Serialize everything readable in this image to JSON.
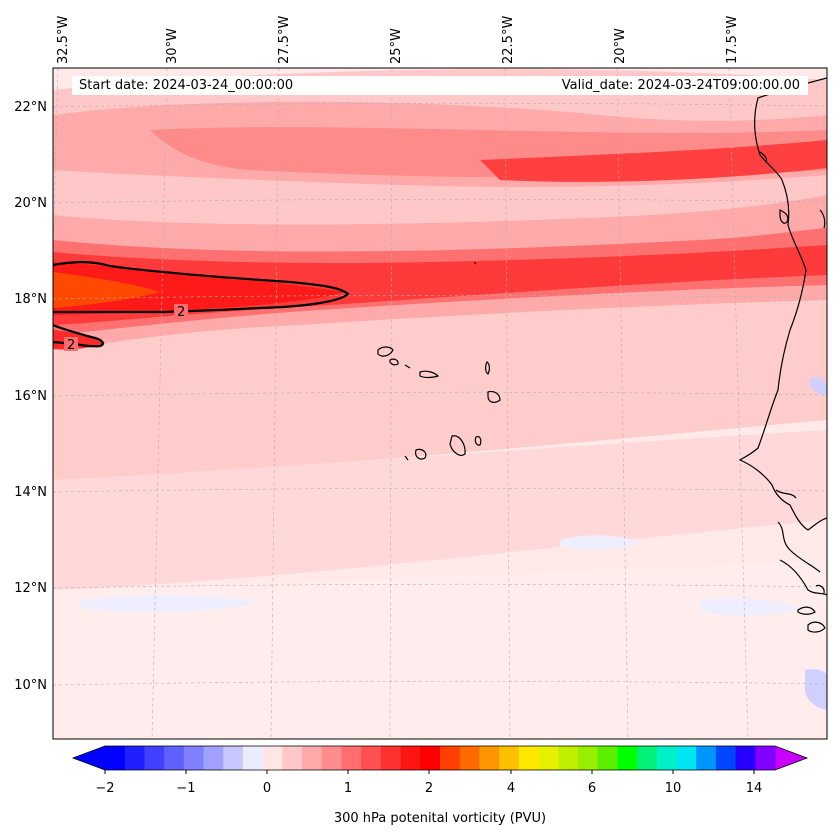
{
  "header": {
    "start_date": "Start date: 2024-03-24_00:00:00",
    "valid_date": "Valid_date: 2024-03-24T09:00:00.00"
  },
  "longitude_labels": [
    "32.5°W",
    "30°W",
    "27.5°W",
    "25°W",
    "22.5°W",
    "20°W",
    "17.5°W"
  ],
  "latitude_labels": [
    "22°N",
    "20°N",
    "18°N",
    "16°N",
    "14°N",
    "12°N",
    "10°N"
  ],
  "contour_labels": [
    "2",
    "2"
  ],
  "colorbar": {
    "title": "300 hPa potenital vorticity (PVU)",
    "tick_labels": [
      "−2",
      "−1",
      "0",
      "1",
      "2",
      "4",
      "6",
      "10",
      "14"
    ],
    "colors": [
      "#0000ff",
      "#2020ff",
      "#4040ff",
      "#6060ff",
      "#8080ff",
      "#a0a0ff",
      "#c8c8ff",
      "#ececff",
      "#ffe6e6",
      "#ffc8c8",
      "#ffaaaa",
      "#ff8c8c",
      "#ff6e6e",
      "#ff5050",
      "#ff3232",
      "#ff1414",
      "#ff0000",
      "#ff4000",
      "#ff6a00",
      "#ff9600",
      "#ffc000",
      "#ffe800",
      "#e6f000",
      "#c0f000",
      "#96f000",
      "#5af000",
      "#00ff00",
      "#00f078",
      "#00f0c8",
      "#00e6f0",
      "#0096ff",
      "#0046ff",
      "#2800ff",
      "#8200ff"
    ],
    "under_color": "#0000ff",
    "over_color": "#c800ff"
  },
  "colors": {
    "background_field": "#ffe8e8",
    "coastline": "#000000",
    "contour": "#000000",
    "gridline": "#b0b0b0"
  }
}
